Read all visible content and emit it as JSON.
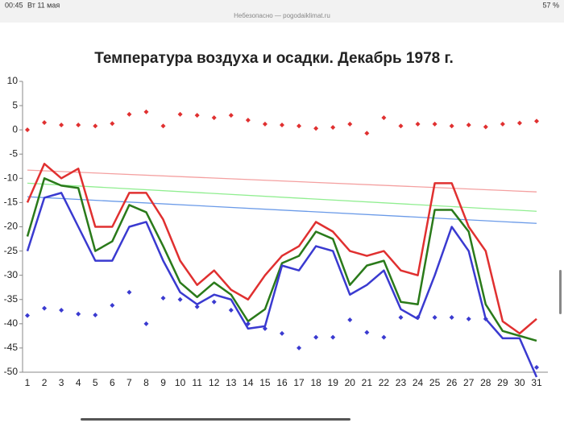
{
  "status_bar": {
    "time": "00:45",
    "date": "Вт 11 мая",
    "url": "Небезопасно — pogodaiklimat.ru",
    "battery": "57 %"
  },
  "chart_data": {
    "type": "line",
    "title": "Температура воздуха и осадки. Декабрь 1978 г.",
    "categories": [
      "1",
      "2",
      "3",
      "4",
      "5",
      "6",
      "7",
      "8",
      "9",
      "10",
      "11",
      "12",
      "13",
      "14",
      "15",
      "16",
      "17",
      "18",
      "19",
      "20",
      "21",
      "22",
      "23",
      "24",
      "25",
      "26",
      "27",
      "28",
      "29",
      "30",
      "31"
    ],
    "ylim": [
      -50,
      10
    ],
    "yticks": [
      10,
      5,
      0,
      -5,
      -10,
      -15,
      -20,
      -25,
      -30,
      -35,
      -40,
      -45,
      -50
    ],
    "grid": false,
    "series": [
      {
        "color": "#e03030",
        "values": [
          -15,
          -7,
          -10,
          -8,
          -20,
          -20,
          -13,
          -13,
          -18.5,
          -27,
          -32,
          -29,
          -33,
          -35,
          -30,
          -26,
          -24,
          -19,
          -21,
          -25,
          -26,
          -25,
          -29,
          -30,
          -11,
          -11,
          -20,
          -25,
          -39.5,
          -42,
          -39
        ]
      },
      {
        "color": "#2a7a1a",
        "values": [
          -22,
          -10,
          -11.5,
          -12,
          -25,
          -23,
          -15.5,
          -17,
          -24,
          -31.5,
          -34.5,
          -31.5,
          -34,
          -39.5,
          -37,
          -27.5,
          -26,
          -21,
          -22.5,
          -32,
          -28,
          -27,
          -35.5,
          -36,
          -16.5,
          -16.5,
          -21,
          -36,
          -41.5,
          -42.5,
          -43.5
        ]
      },
      {
        "color": "#3a3ad0",
        "values": [
          -25,
          -14,
          -13,
          -20,
          -27,
          -27,
          -20,
          -19,
          -27,
          -33.5,
          -36,
          -34,
          -35,
          -41,
          -40.5,
          -28,
          -29,
          -24,
          -25,
          -34,
          -32,
          -29,
          -37,
          -39,
          -30,
          -20,
          -25,
          -39,
          -43,
          -43,
          -51
        ]
      }
    ],
    "points": [
      {
        "color": "#e03030",
        "values": [
          0,
          1.5,
          1,
          1,
          0.8,
          1.3,
          3.2,
          3.7,
          0.8,
          3.2,
          3,
          2.5,
          3,
          2,
          1.2,
          1,
          0.8,
          0.3,
          0.5,
          1.2,
          -0.7,
          2.5,
          0.8,
          1.2,
          1.2,
          0.8,
          1,
          0.6,
          1.2,
          1.4,
          1.8
        ]
      },
      {
        "color": "#3a3ad0",
        "values": [
          -38.3,
          -36.8,
          -37.2,
          -38,
          -38.2,
          -36.2,
          -33.5,
          -40,
          -34.7,
          -35,
          -36.5,
          -35.5,
          -37.2,
          -40,
          -41,
          -42,
          -45,
          -42.8,
          -42.8,
          -39.2,
          -41.8,
          -42.8,
          -38.7,
          -38.7,
          -38.7,
          -38.7,
          -39,
          -39,
          null,
          null,
          -49
        ]
      }
    ],
    "trend_lines": [
      {
        "color": "#f4a0a0",
        "values": [
          -8.3,
          -12.8
        ]
      },
      {
        "color": "#90ee90",
        "values": [
          -11,
          -16.8
        ]
      },
      {
        "color": "#6a9ae8",
        "values": [
          -13.8,
          -19.3
        ]
      }
    ]
  }
}
